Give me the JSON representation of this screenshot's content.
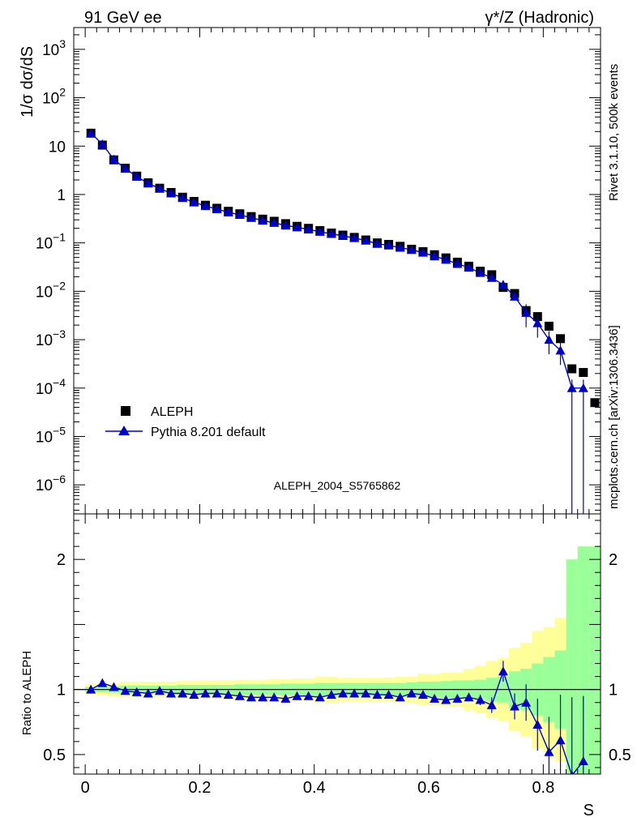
{
  "chart_data": {
    "type": "scatter",
    "header_left": "91 GeV ee",
    "header_right": "γ*/Z (Hadronic)",
    "side_label_1": "Rivet 3.1.10,  500k events",
    "side_label_2": "mcplots.cern.ch [arXiv:1306.3436]",
    "analysis_id": "ALEPH_2004_S5765862",
    "ylabel_top": "1/σ  dσ/dS",
    "ylabel_bottom": "Ratio to ALEPH",
    "xlabel": "S",
    "xlim": [
      -0.02,
      0.9
    ],
    "ylim_top_log10": [
      -6.6,
      3.45
    ],
    "ylim_bottom": [
      0.35,
      2.35
    ],
    "x_ticks": [
      {
        "value": 0,
        "label": "0"
      },
      {
        "value": 0.2,
        "label": "0.2"
      },
      {
        "value": 0.4,
        "label": "0.4"
      },
      {
        "value": 0.6,
        "label": "0.6"
      },
      {
        "value": 0.8,
        "label": "0.8"
      }
    ],
    "y_ticks_top": [
      {
        "exp": 3,
        "label": "10",
        "sup": "3"
      },
      {
        "exp": 2,
        "label": "10",
        "sup": "2"
      },
      {
        "exp": 1,
        "label": "10",
        "sup": ""
      },
      {
        "exp": 0,
        "label": "1",
        "sup": ""
      },
      {
        "exp": -1,
        "label": "10",
        "sup": "−1"
      },
      {
        "exp": -2,
        "label": "10",
        "sup": "−2"
      },
      {
        "exp": -3,
        "label": "10",
        "sup": "−3"
      },
      {
        "exp": -4,
        "label": "10",
        "sup": "−4"
      },
      {
        "exp": -5,
        "label": "10",
        "sup": "−5"
      },
      {
        "exp": -6,
        "label": "10",
        "sup": "−6"
      }
    ],
    "y_ticks_bottom": [
      {
        "value": 2,
        "label": "2"
      },
      {
        "value": 1,
        "label": "1"
      },
      {
        "value": 0.5,
        "label": "0.5"
      }
    ],
    "series": [
      {
        "name": "ALEPH",
        "marker": "square",
        "color": "#000000",
        "x": [
          0.01,
          0.03,
          0.05,
          0.07,
          0.09,
          0.11,
          0.13,
          0.15,
          0.17,
          0.19,
          0.21,
          0.23,
          0.25,
          0.27,
          0.29,
          0.31,
          0.33,
          0.35,
          0.37,
          0.39,
          0.41,
          0.43,
          0.45,
          0.47,
          0.49,
          0.51,
          0.53,
          0.55,
          0.57,
          0.59,
          0.61,
          0.63,
          0.65,
          0.67,
          0.69,
          0.71,
          0.73,
          0.75,
          0.77,
          0.79,
          0.81,
          0.83,
          0.85,
          0.87,
          0.89
        ],
        "y": [
          18.5,
          10.5,
          5.2,
          3.5,
          2.4,
          1.75,
          1.35,
          1.1,
          0.88,
          0.72,
          0.6,
          0.52,
          0.45,
          0.4,
          0.35,
          0.31,
          0.28,
          0.25,
          0.22,
          0.2,
          0.18,
          0.16,
          0.145,
          0.13,
          0.115,
          0.1,
          0.093,
          0.085,
          0.074,
          0.066,
          0.057,
          0.049,
          0.04,
          0.033,
          0.026,
          0.022,
          0.012,
          0.009,
          0.004,
          0.003,
          0.0019,
          0.00105,
          0.00025,
          0.00021,
          5e-05
        ]
      },
      {
        "name": "Pythia 8.201 default",
        "marker": "triangle",
        "color": "#0000cc",
        "x": [
          0.01,
          0.03,
          0.05,
          0.07,
          0.09,
          0.11,
          0.13,
          0.15,
          0.17,
          0.19,
          0.21,
          0.23,
          0.25,
          0.27,
          0.29,
          0.31,
          0.33,
          0.35,
          0.37,
          0.39,
          0.41,
          0.43,
          0.45,
          0.47,
          0.49,
          0.51,
          0.53,
          0.55,
          0.57,
          0.59,
          0.61,
          0.63,
          0.65,
          0.67,
          0.69,
          0.71,
          0.73,
          0.75,
          0.77,
          0.79,
          0.81,
          0.83,
          0.85,
          0.87
        ],
        "y": [
          18.5,
          11.0,
          5.3,
          3.45,
          2.35,
          1.7,
          1.33,
          1.06,
          0.85,
          0.69,
          0.58,
          0.5,
          0.43,
          0.38,
          0.33,
          0.29,
          0.26,
          0.23,
          0.21,
          0.19,
          0.17,
          0.154,
          0.14,
          0.126,
          0.112,
          0.096,
          0.089,
          0.08,
          0.072,
          0.063,
          0.053,
          0.045,
          0.037,
          0.031,
          0.024,
          0.019,
          0.0137,
          0.0078,
          0.0036,
          0.0022,
          0.001,
          0.0006,
          0.0001,
          0.0001
        ],
        "ratio": [
          1.0,
          1.05,
          1.02,
          0.99,
          0.98,
          0.97,
          0.99,
          0.97,
          0.97,
          0.96,
          0.97,
          0.97,
          0.96,
          0.95,
          0.94,
          0.94,
          0.94,
          0.93,
          0.95,
          0.95,
          0.94,
          0.96,
          0.97,
          0.97,
          0.97,
          0.96,
          0.96,
          0.94,
          0.97,
          0.96,
          0.93,
          0.92,
          0.93,
          0.94,
          0.92,
          0.88,
          1.14,
          0.87,
          0.9,
          0.73,
          0.52,
          0.61,
          0.34,
          0.45
        ],
        "ratio_err": [
          0.01,
          0.01,
          0.01,
          0.01,
          0.01,
          0.01,
          0.01,
          0.01,
          0.01,
          0.01,
          0.01,
          0.01,
          0.01,
          0.01,
          0.01,
          0.01,
          0.01,
          0.01,
          0.01,
          0.01,
          0.01,
          0.01,
          0.01,
          0.01,
          0.02,
          0.02,
          0.02,
          0.02,
          0.02,
          0.02,
          0.02,
          0.03,
          0.03,
          0.03,
          0.04,
          0.06,
          0.08,
          0.1,
          0.14,
          0.2,
          0.27,
          0.35,
          0.6,
          0.5
        ]
      }
    ],
    "uncertainty_bands": {
      "x_edges": [
        0.0,
        0.02,
        0.04,
        0.06,
        0.08,
        0.1,
        0.12,
        0.14,
        0.16,
        0.18,
        0.2,
        0.22,
        0.24,
        0.26,
        0.28,
        0.3,
        0.32,
        0.34,
        0.36,
        0.38,
        0.4,
        0.42,
        0.44,
        0.46,
        0.48,
        0.5,
        0.52,
        0.54,
        0.56,
        0.58,
        0.6,
        0.62,
        0.64,
        0.66,
        0.68,
        0.7,
        0.72,
        0.74,
        0.76,
        0.78,
        0.8,
        0.82,
        0.84,
        0.86,
        0.88,
        0.9
      ],
      "stat_halfwidth": [
        0.02,
        0.02,
        0.025,
        0.03,
        0.03,
        0.03,
        0.03,
        0.03,
        0.035,
        0.035,
        0.035,
        0.035,
        0.035,
        0.04,
        0.04,
        0.04,
        0.04,
        0.045,
        0.045,
        0.045,
        0.05,
        0.05,
        0.05,
        0.05,
        0.05,
        0.05,
        0.05,
        0.05,
        0.055,
        0.06,
        0.06,
        0.065,
        0.07,
        0.07,
        0.075,
        0.09,
        0.1,
        0.14,
        0.16,
        0.2,
        0.25,
        0.3,
        1.0,
        1.1,
        1.1
      ],
      "total_halfwidth": [
        0.04,
        0.04,
        0.05,
        0.06,
        0.06,
        0.06,
        0.06,
        0.06,
        0.065,
        0.065,
        0.07,
        0.07,
        0.07,
        0.075,
        0.075,
        0.075,
        0.08,
        0.08,
        0.085,
        0.085,
        0.1,
        0.1,
        0.09,
        0.09,
        0.09,
        0.09,
        0.09,
        0.1,
        0.1,
        0.12,
        0.12,
        0.13,
        0.13,
        0.16,
        0.18,
        0.22,
        0.24,
        0.32,
        0.36,
        0.45,
        0.48,
        0.55,
        1.0,
        1.1,
        1.1
      ],
      "stat_color": "#99ff99",
      "total_color": "#ffff99"
    },
    "legend_location": "lower-left"
  }
}
